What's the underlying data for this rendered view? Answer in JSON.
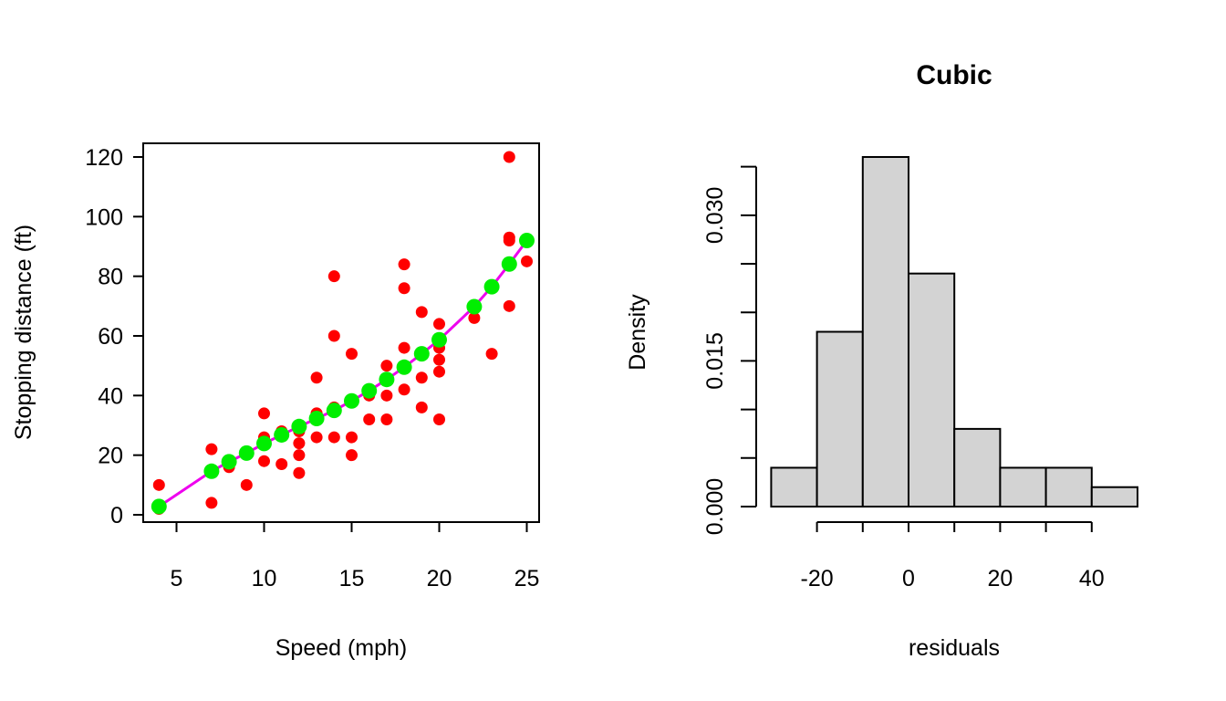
{
  "chart_data": [
    {
      "type": "scatter",
      "title": "",
      "xlabel": "Speed (mph)",
      "ylabel": "Stopping distance (ft)",
      "xlim": [
        4,
        25
      ],
      "ylim": [
        0,
        120
      ],
      "x_ticks": [
        5,
        10,
        15,
        20,
        25
      ],
      "y_ticks": [
        0,
        20,
        40,
        60,
        80,
        100,
        120
      ],
      "grid": false,
      "colors": {
        "observed": "#ff0000",
        "fitted": "#00ee00",
        "fit_line": "#ee00ee"
      },
      "observed_points": [
        [
          4,
          2
        ],
        [
          4,
          10
        ],
        [
          7,
          4
        ],
        [
          7,
          22
        ],
        [
          8,
          16
        ],
        [
          9,
          10
        ],
        [
          10,
          18
        ],
        [
          10,
          26
        ],
        [
          10,
          34
        ],
        [
          11,
          17
        ],
        [
          11,
          28
        ],
        [
          12,
          14
        ],
        [
          12,
          20
        ],
        [
          12,
          24
        ],
        [
          12,
          28
        ],
        [
          13,
          26
        ],
        [
          13,
          34
        ],
        [
          13,
          34
        ],
        [
          13,
          46
        ],
        [
          14,
          26
        ],
        [
          14,
          36
        ],
        [
          14,
          60
        ],
        [
          14,
          80
        ],
        [
          15,
          20
        ],
        [
          15,
          26
        ],
        [
          15,
          54
        ],
        [
          16,
          32
        ],
        [
          16,
          40
        ],
        [
          17,
          32
        ],
        [
          17,
          40
        ],
        [
          17,
          50
        ],
        [
          18,
          42
        ],
        [
          18,
          56
        ],
        [
          18,
          76
        ],
        [
          18,
          84
        ],
        [
          19,
          36
        ],
        [
          19,
          46
        ],
        [
          19,
          68
        ],
        [
          20,
          32
        ],
        [
          20,
          48
        ],
        [
          20,
          52
        ],
        [
          20,
          56
        ],
        [
          20,
          64
        ],
        [
          22,
          66
        ],
        [
          23,
          54
        ],
        [
          24,
          70
        ],
        [
          24,
          92
        ],
        [
          24,
          93
        ],
        [
          24,
          120
        ],
        [
          25,
          85
        ]
      ],
      "fitted_points": [
        [
          4,
          2.8
        ],
        [
          7,
          14.6
        ],
        [
          8,
          17.8
        ],
        [
          9,
          20.7
        ],
        [
          10,
          23.9
        ],
        [
          11,
          26.8
        ],
        [
          12,
          29.6
        ],
        [
          13,
          32.3
        ],
        [
          14,
          35.0
        ],
        [
          15,
          38.2
        ],
        [
          16,
          41.6
        ],
        [
          17,
          45.4
        ],
        [
          18,
          49.5
        ],
        [
          19,
          54.0
        ],
        [
          20,
          58.7
        ],
        [
          22,
          69.8
        ],
        [
          23,
          76.5
        ],
        [
          24,
          84.1
        ],
        [
          25,
          92.0
        ]
      ]
    },
    {
      "type": "bar",
      "subtype": "histogram",
      "title": "Cubic",
      "xlabel": "residuals",
      "ylabel": "Density",
      "bin_edges": [
        -30,
        -20,
        -10,
        0,
        10,
        20,
        30,
        40,
        50
      ],
      "values": [
        0.004,
        0.018,
        0.036,
        0.024,
        0.008,
        0.004,
        0.004,
        0.002
      ],
      "x_ticks": [
        "-20",
        "0",
        "20",
        "40"
      ],
      "y_ticks": [
        "0.000",
        "0.015",
        "0.030"
      ],
      "ylim": [
        0,
        0.036
      ],
      "grid": false,
      "colors": {
        "bar_fill": "#d3d3d3",
        "bar_stroke": "#000000"
      }
    }
  ]
}
